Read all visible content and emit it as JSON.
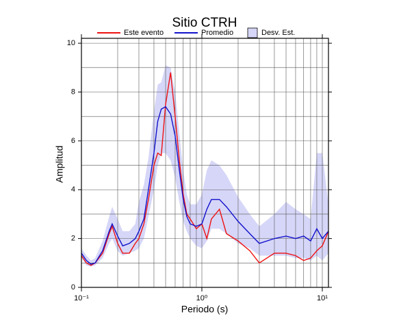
{
  "chart_data": {
    "type": "line",
    "title": "Sitio CTRH",
    "x_label": "Periodo (s)",
    "y_label": "Amplitud",
    "x_scale": "log",
    "xlim": [
      0.1,
      11.25
    ],
    "xticks": [
      {
        "value": 0.1,
        "label": "10⁻¹"
      },
      {
        "value": 1,
        "label": "10⁰"
      },
      {
        "value": 10,
        "label": "10¹"
      }
    ],
    "x_minor_ticks": [
      0.2,
      0.3,
      0.4,
      0.5,
      0.6,
      0.7,
      0.8,
      0.9,
      2,
      3,
      4,
      5,
      6,
      7,
      8,
      9
    ],
    "ylim": [
      0,
      10.2
    ],
    "yticks": [
      0,
      2,
      4,
      6,
      8,
      10
    ],
    "y_minor_ticks": [
      1,
      3,
      5,
      7,
      9
    ],
    "grid": true,
    "x": [
      0.1,
      0.11,
      0.12,
      0.13,
      0.15,
      0.17,
      0.18,
      0.2,
      0.22,
      0.25,
      0.28,
      0.3,
      0.33,
      0.36,
      0.4,
      0.43,
      0.46,
      0.5,
      0.55,
      0.6,
      0.65,
      0.7,
      0.75,
      0.8,
      0.9,
      1.0,
      1.1,
      1.2,
      1.4,
      1.6,
      2.0,
      2.5,
      3,
      4,
      5,
      6,
      7,
      8,
      9,
      10,
      11.25
    ],
    "series": [
      {
        "name": "Este evento",
        "color": "#ee1111",
        "values": [
          1.3,
          1.0,
          0.9,
          1.0,
          1.4,
          2.2,
          2.5,
          1.8,
          1.4,
          1.4,
          1.8,
          2.0,
          2.6,
          3.6,
          5.0,
          5.5,
          5.4,
          7.5,
          8.8,
          7.0,
          5.2,
          3.8,
          3.0,
          2.8,
          2.4,
          2.6,
          2.0,
          2.8,
          3.2,
          2.2,
          1.9,
          1.5,
          1.0,
          1.4,
          1.4,
          1.3,
          1.1,
          1.2,
          1.5,
          1.7,
          2.3
        ]
      },
      {
        "name": "Promedio",
        "color": "#1111cc",
        "values": [
          1.4,
          1.1,
          0.95,
          1.0,
          1.5,
          2.3,
          2.6,
          2.1,
          1.7,
          1.8,
          2.0,
          2.3,
          2.8,
          4.0,
          5.5,
          6.8,
          7.3,
          7.4,
          7.1,
          6.2,
          4.8,
          3.6,
          2.9,
          2.6,
          2.5,
          2.6,
          3.2,
          3.6,
          3.6,
          3.3,
          2.7,
          2.2,
          1.8,
          2.0,
          2.1,
          2.0,
          2.1,
          1.9,
          2.4,
          2.0,
          2.3
        ]
      }
    ],
    "band": {
      "name": "Desv. Est.",
      "color": "#d6d6f8",
      "lower": [
        1.2,
        0.9,
        0.85,
        0.9,
        1.2,
        1.8,
        2.0,
        1.5,
        1.3,
        1.4,
        1.5,
        1.6,
        2.0,
        2.9,
        4.0,
        5.0,
        5.5,
        5.5,
        5.2,
        4.5,
        3.5,
        2.7,
        2.3,
        2.0,
        1.7,
        1.6,
        1.9,
        2.4,
        2.4,
        2.2,
        1.8,
        1.6,
        1.3,
        1.3,
        1.3,
        1.2,
        1.2,
        1.1,
        1.3,
        1.1,
        1.4
      ],
      "upper": [
        1.6,
        1.3,
        1.1,
        1.2,
        1.9,
        2.9,
        3.3,
        2.8,
        2.3,
        2.3,
        2.6,
        3.5,
        4.2,
        5.3,
        7.2,
        8.3,
        8.4,
        9.1,
        9.0,
        8.0,
        6.3,
        4.8,
        3.8,
        3.4,
        3.4,
        3.8,
        4.8,
        5.2,
        5.0,
        4.6,
        3.7,
        3.0,
        2.5,
        3.0,
        3.5,
        3.2,
        3.0,
        2.8,
        5.5,
        5.5,
        3.4
      ]
    }
  }
}
